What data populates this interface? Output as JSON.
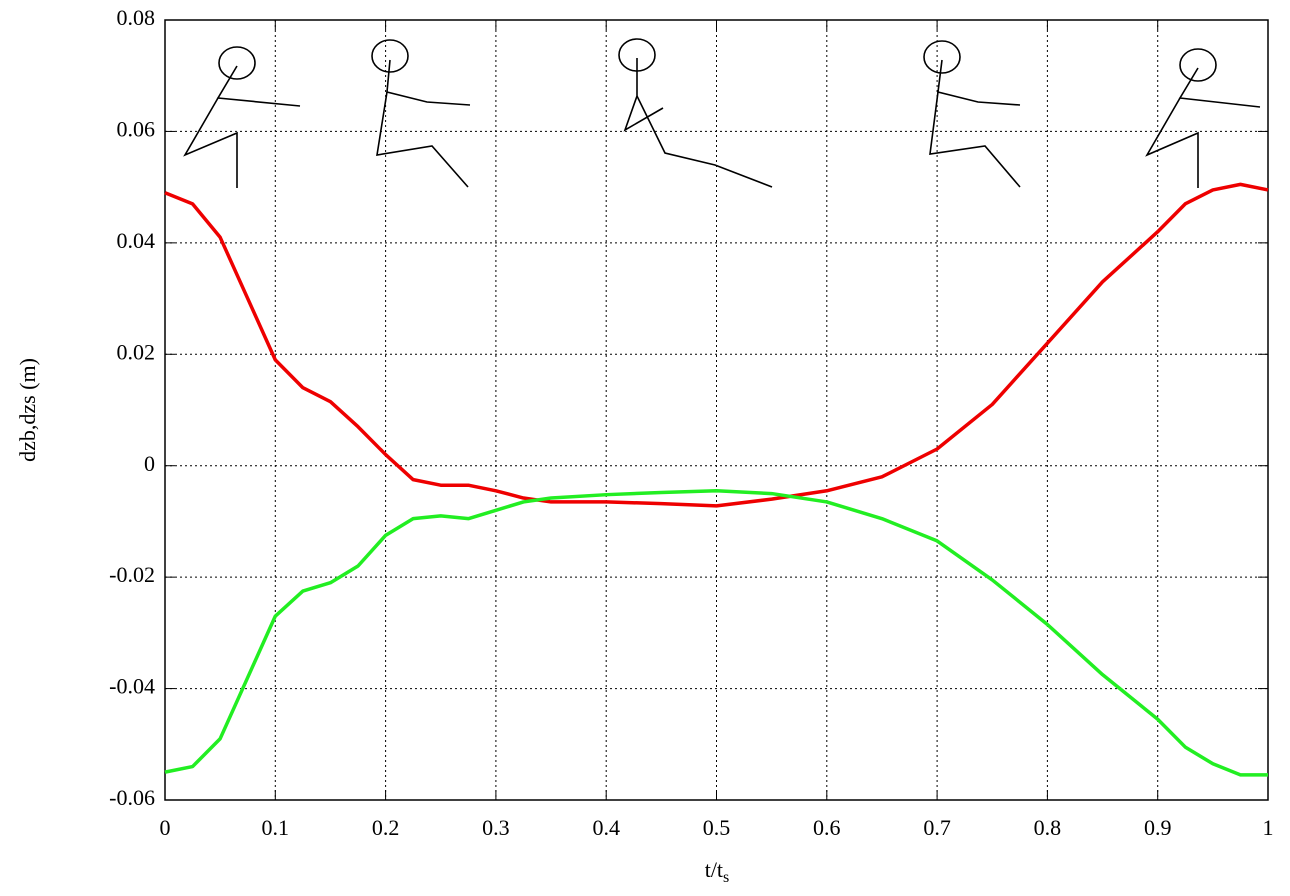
{
  "chart_data": {
    "type": "line",
    "x_label": "t/t",
    "x_label_sub": "s",
    "y_label": "dzb,dzs (m)",
    "x": [
      0,
      0.025,
      0.05,
      0.075,
      0.1,
      0.125,
      0.15,
      0.175,
      0.2,
      0.225,
      0.25,
      0.275,
      0.3,
      0.325,
      0.35,
      0.4,
      0.45,
      0.5,
      0.55,
      0.6,
      0.65,
      0.7,
      0.75,
      0.8,
      0.85,
      0.9,
      0.925,
      0.95,
      0.975,
      1
    ],
    "series": [
      {
        "color": "#ee0000",
        "values": [
          0.049,
          0.047,
          0.041,
          0.03,
          0.019,
          0.014,
          0.0115,
          0.007,
          0.002,
          -0.0025,
          -0.0035,
          -0.0035,
          -0.0045,
          -0.0058,
          -0.0065,
          -0.0065,
          -0.0068,
          -0.0072,
          -0.006,
          -0.0045,
          -0.002,
          0.003,
          0.011,
          0.022,
          0.033,
          0.042,
          0.047,
          0.0495,
          0.0505,
          0.0495
        ]
      },
      {
        "color": "#22ee22",
        "values": [
          -0.055,
          -0.054,
          -0.049,
          -0.038,
          -0.027,
          -0.0225,
          -0.021,
          -0.018,
          -0.0125,
          -0.0095,
          -0.009,
          -0.0095,
          -0.008,
          -0.0065,
          -0.0058,
          -0.0052,
          -0.0048,
          -0.0045,
          -0.005,
          -0.0065,
          -0.0095,
          -0.0135,
          -0.0205,
          -0.0285,
          -0.0375,
          -0.0455,
          -0.0505,
          -0.0535,
          -0.0555,
          -0.0555
        ]
      }
    ],
    "xlim": [
      0,
      1
    ],
    "xticks": [
      0,
      0.1,
      0.2,
      0.3,
      0.4,
      0.5,
      0.6,
      0.7,
      0.8,
      0.9,
      1
    ],
    "ylim": [
      -0.06,
      0.08
    ],
    "yticks": [
      -0.06,
      -0.04,
      -0.02,
      0,
      0.02,
      0.04,
      0.06,
      0.08
    ],
    "grid": true
  }
}
